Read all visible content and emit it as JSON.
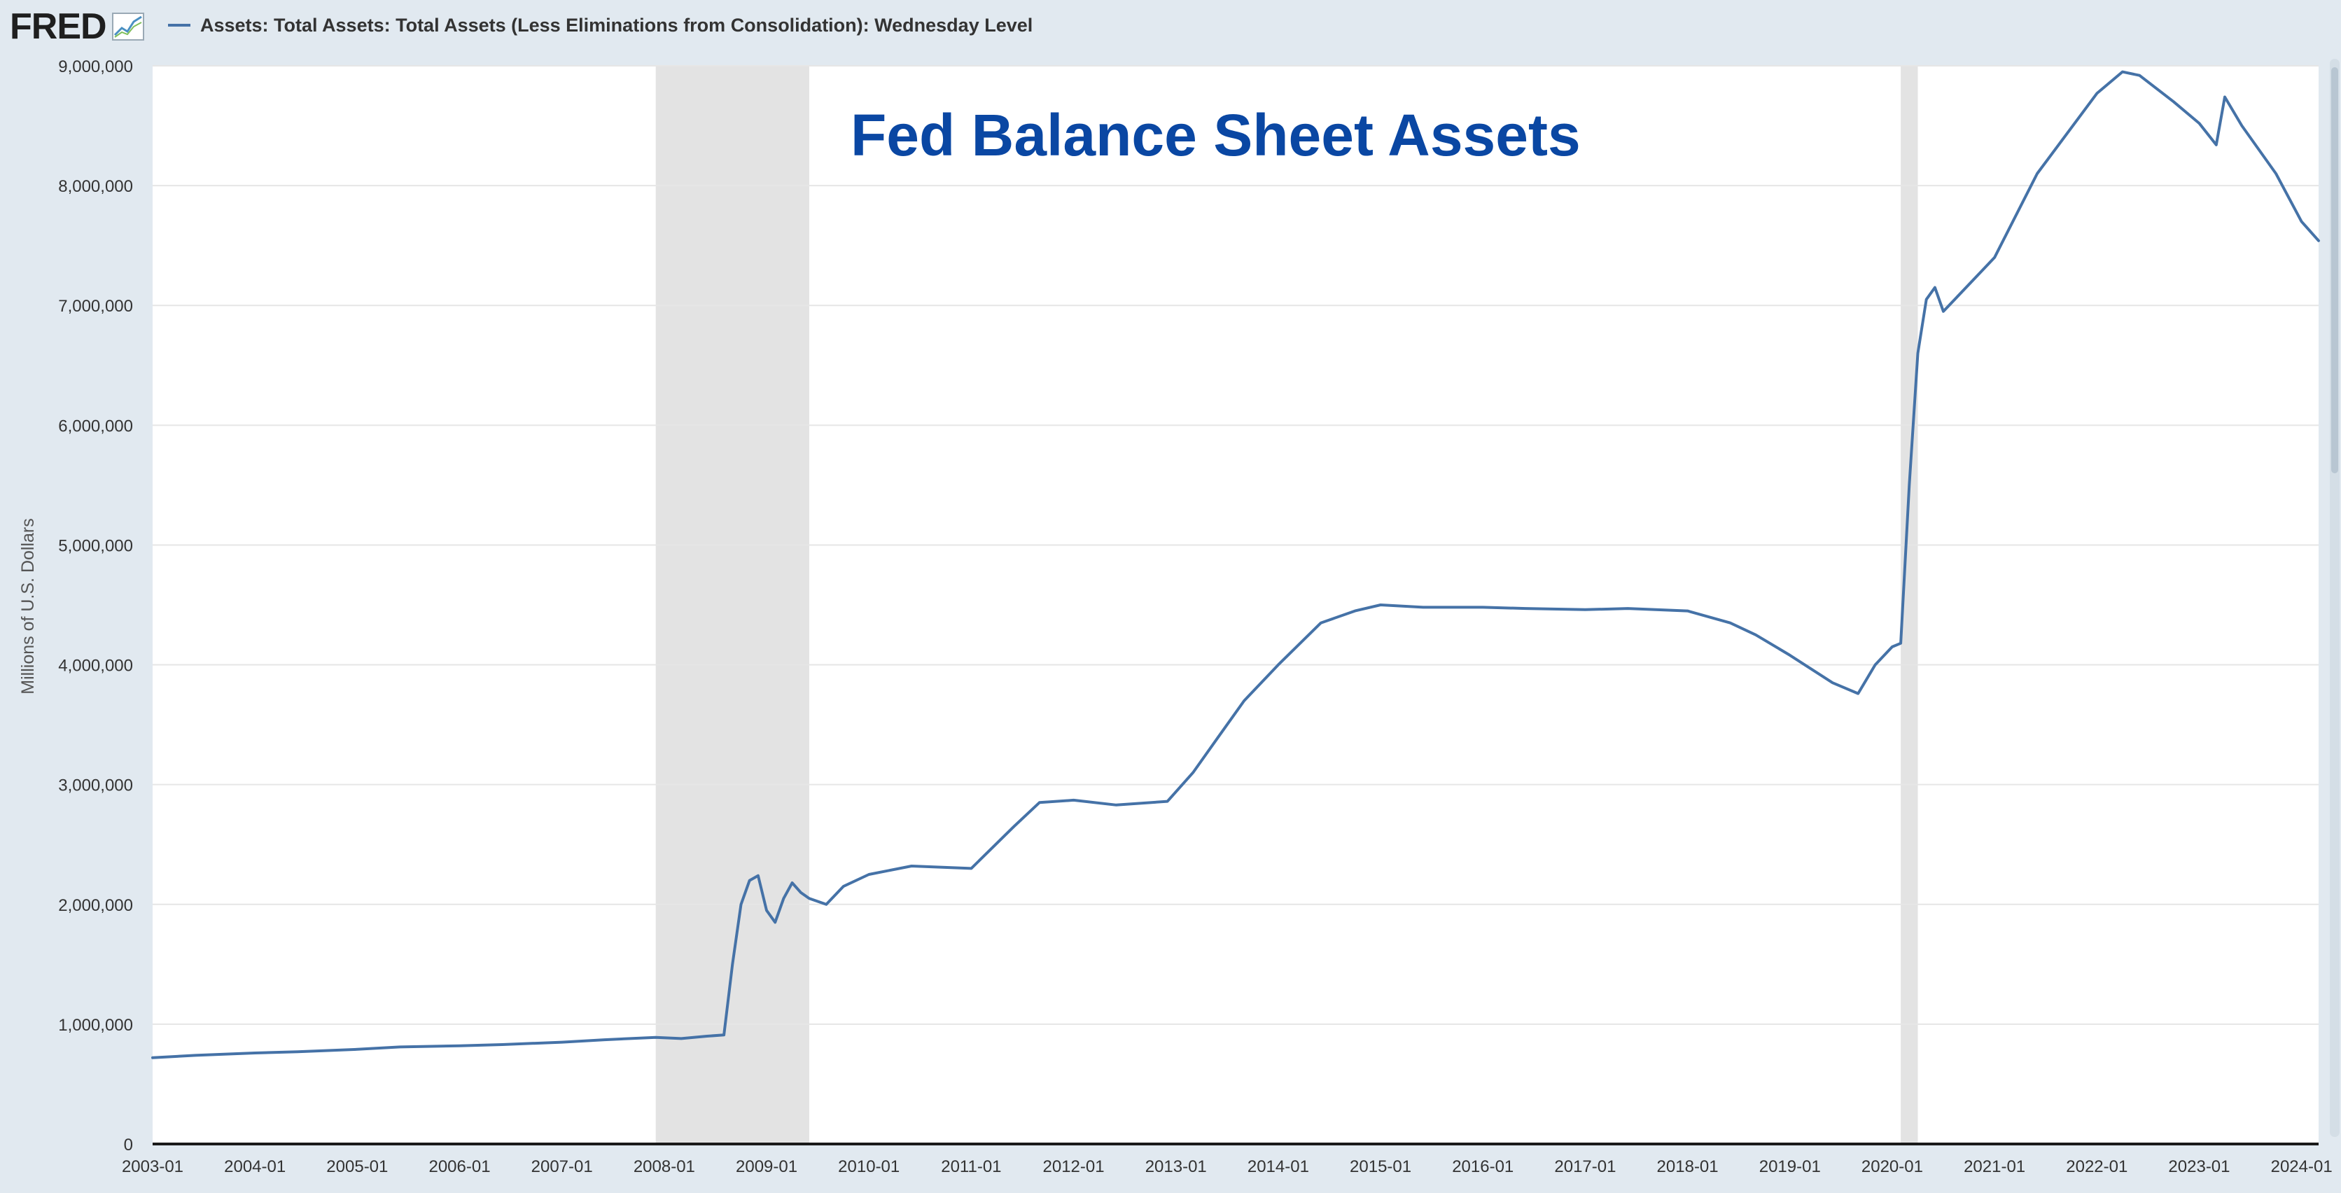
{
  "logo": {
    "text": "FRED"
  },
  "legend": {
    "label": "Assets: Total Assets: Total Assets (Less Eliminations from Consolidation): Wednesday Level"
  },
  "colors": {
    "series": "#4572a7",
    "title": "#0a47a3",
    "recession": "#e3e3e3",
    "grid": "#e6e6e6",
    "plot_bg": "#ffffff",
    "page_bg": "#e1e9f0"
  },
  "chart_data": {
    "type": "line",
    "title": "Fed Balance Sheet Assets",
    "ylabel": "Millions of U.S. Dollars",
    "xlabel": "",
    "xlim": [
      "2003-01",
      "2024-03"
    ],
    "ylim": [
      0,
      9000000
    ],
    "grid": true,
    "yticks": [
      {
        "value": 0,
        "label": "0"
      },
      {
        "value": 1000000,
        "label": "1,000,000"
      },
      {
        "value": 2000000,
        "label": "2,000,000"
      },
      {
        "value": 3000000,
        "label": "3,000,000"
      },
      {
        "value": 4000000,
        "label": "4,000,000"
      },
      {
        "value": 5000000,
        "label": "5,000,000"
      },
      {
        "value": 6000000,
        "label": "6,000,000"
      },
      {
        "value": 7000000,
        "label": "7,000,000"
      },
      {
        "value": 8000000,
        "label": "8,000,000"
      },
      {
        "value": 9000000,
        "label": "9,000,000"
      }
    ],
    "xticks": [
      "2003-01",
      "2004-01",
      "2005-01",
      "2006-01",
      "2007-01",
      "2008-01",
      "2009-01",
      "2010-01",
      "2011-01",
      "2012-01",
      "2013-01",
      "2014-01",
      "2015-01",
      "2016-01",
      "2017-01",
      "2018-01",
      "2019-01",
      "2020-01",
      "2021-01",
      "2022-01",
      "2023-01",
      "2024-01"
    ],
    "recessions": [
      {
        "start": "2007-12",
        "end": "2009-06"
      },
      {
        "start": "2020-02",
        "end": "2020-04"
      }
    ],
    "series": [
      {
        "name": "Assets: Total Assets: Total Assets (Less Eliminations from Consolidation): Wednesday Level",
        "x": [
          "2002-12",
          "2003-06",
          "2004-01",
          "2004-06",
          "2005-01",
          "2005-06",
          "2006-01",
          "2006-06",
          "2007-01",
          "2007-06",
          "2007-12",
          "2008-03",
          "2008-06",
          "2008-08",
          "2008-09",
          "2008-10",
          "2008-11",
          "2008-12",
          "2009-01",
          "2009-02",
          "2009-03",
          "2009-04",
          "2009-05",
          "2009-06",
          "2009-08",
          "2009-10",
          "2010-01",
          "2010-06",
          "2011-01",
          "2011-06",
          "2011-09",
          "2012-01",
          "2012-06",
          "2012-12",
          "2013-03",
          "2013-06",
          "2013-09",
          "2014-01",
          "2014-06",
          "2014-10",
          "2015-01",
          "2015-06",
          "2016-01",
          "2016-06",
          "2017-01",
          "2017-06",
          "2018-01",
          "2018-06",
          "2018-09",
          "2019-01",
          "2019-06",
          "2019-09",
          "2019-11",
          "2020-01",
          "2020-02",
          "2020-03",
          "2020-04",
          "2020-05",
          "2020-06",
          "2020-07",
          "2021-01",
          "2021-06",
          "2022-01",
          "2022-04",
          "2022-06",
          "2022-10",
          "2023-01",
          "2023-03",
          "2023-04",
          "2023-06",
          "2023-10",
          "2024-01",
          "2024-03"
        ],
        "values": [
          720000,
          740000,
          760000,
          770000,
          790000,
          810000,
          820000,
          830000,
          850000,
          870000,
          890000,
          880000,
          900000,
          910000,
          1500000,
          2000000,
          2200000,
          2240000,
          1950000,
          1850000,
          2050000,
          2180000,
          2100000,
          2050000,
          2000000,
          2150000,
          2250000,
          2320000,
          2300000,
          2650000,
          2850000,
          2870000,
          2830000,
          2860000,
          3100000,
          3400000,
          3700000,
          4000000,
          4350000,
          4450000,
          4500000,
          4480000,
          4480000,
          4470000,
          4460000,
          4470000,
          4450000,
          4350000,
          4250000,
          4080000,
          3850000,
          3760000,
          4000000,
          4150000,
          4180000,
          5500000,
          6600000,
          7050000,
          7150000,
          6950000,
          7400000,
          8100000,
          8770000,
          8950000,
          8920000,
          8700000,
          8520000,
          8340000,
          8740000,
          8500000,
          8100000,
          7700000,
          7540000
        ]
      }
    ]
  }
}
